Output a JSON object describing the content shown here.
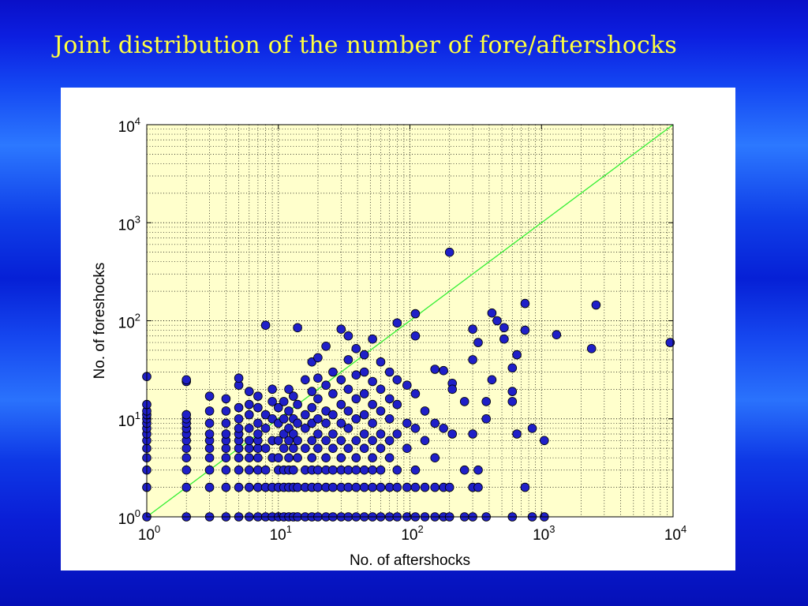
{
  "slide": {
    "title": "Joint distribution of the number of fore/aftershocks"
  },
  "colors": {
    "background": "#0a1ed6",
    "title": "#ffff40",
    "plot_area": "#ffffcc",
    "marker_fill": "#1f1fc8",
    "marker_edge": "#000000",
    "reference_line": "#33ee33",
    "grid": "#000000"
  },
  "chart_data": {
    "type": "scatter",
    "title": "",
    "xlabel": "No. of aftershocks",
    "ylabel": "No. of foreshocks",
    "xscale": "log",
    "yscale": "log",
    "xlim": [
      1,
      10000
    ],
    "ylim": [
      1,
      10000
    ],
    "x_tick_labels": [
      "10^0",
      "10^1",
      "10^2",
      "10^3",
      "10^4"
    ],
    "y_tick_labels": [
      "10^0",
      "10^1",
      "10^2",
      "10^3",
      "10^4"
    ],
    "grid": true,
    "grid_style": "dotted",
    "reference_line": {
      "type": "y=x",
      "color": "#33ee33"
    },
    "series": [
      {
        "points": [
          [
            1,
            1
          ],
          [
            1,
            2
          ],
          [
            1,
            3
          ],
          [
            1,
            4
          ],
          [
            1,
            5
          ],
          [
            1,
            6
          ],
          [
            1,
            7
          ],
          [
            1,
            8
          ],
          [
            1,
            9
          ],
          [
            1,
            10
          ],
          [
            1,
            11
          ],
          [
            1,
            12
          ],
          [
            1,
            14
          ],
          [
            1,
            27
          ],
          [
            2,
            1
          ],
          [
            2,
            2
          ],
          [
            2,
            3
          ],
          [
            2,
            4
          ],
          [
            2,
            5
          ],
          [
            2,
            6
          ],
          [
            2,
            7
          ],
          [
            2,
            8
          ],
          [
            2,
            9
          ],
          [
            2,
            10
          ],
          [
            2,
            11
          ],
          [
            2,
            24
          ],
          [
            2,
            25
          ],
          [
            3,
            1
          ],
          [
            3,
            2
          ],
          [
            3,
            3
          ],
          [
            3,
            4
          ],
          [
            3,
            5
          ],
          [
            3,
            6
          ],
          [
            3,
            7
          ],
          [
            3,
            9
          ],
          [
            3,
            12
          ],
          [
            3,
            17
          ],
          [
            4,
            1
          ],
          [
            4,
            2
          ],
          [
            4,
            3
          ],
          [
            4,
            4
          ],
          [
            4,
            5
          ],
          [
            4,
            6
          ],
          [
            4,
            7
          ],
          [
            4,
            9
          ],
          [
            4,
            12
          ],
          [
            4,
            16
          ],
          [
            5,
            1
          ],
          [
            5,
            2
          ],
          [
            5,
            3
          ],
          [
            5,
            4
          ],
          [
            5,
            5
          ],
          [
            5,
            6
          ],
          [
            5,
            7
          ],
          [
            5,
            8
          ],
          [
            5,
            10
          ],
          [
            5,
            13
          ],
          [
            5,
            22
          ],
          [
            5,
            26
          ],
          [
            6,
            1
          ],
          [
            6,
            2
          ],
          [
            6,
            3
          ],
          [
            6,
            4
          ],
          [
            6,
            5
          ],
          [
            6,
            6
          ],
          [
            6,
            8
          ],
          [
            6,
            11
          ],
          [
            6,
            14
          ],
          [
            6,
            19
          ],
          [
            7,
            1
          ],
          [
            7,
            2
          ],
          [
            7,
            3
          ],
          [
            7,
            4
          ],
          [
            7,
            5
          ],
          [
            7,
            6
          ],
          [
            7,
            7
          ],
          [
            7,
            9
          ],
          [
            7,
            13
          ],
          [
            7,
            17
          ],
          [
            8,
            1
          ],
          [
            8,
            2
          ],
          [
            8,
            3
          ],
          [
            8,
            5
          ],
          [
            8,
            8
          ],
          [
            8,
            11
          ],
          [
            8,
            90
          ],
          [
            9,
            1
          ],
          [
            9,
            2
          ],
          [
            9,
            4
          ],
          [
            9,
            6
          ],
          [
            9,
            10
          ],
          [
            9,
            15
          ],
          [
            9,
            20
          ],
          [
            10,
            1
          ],
          [
            10,
            2
          ],
          [
            10,
            3
          ],
          [
            10,
            4
          ],
          [
            10,
            6
          ],
          [
            10,
            9
          ],
          [
            10,
            13
          ],
          [
            11,
            1
          ],
          [
            11,
            2
          ],
          [
            11,
            3
          ],
          [
            11,
            5
          ],
          [
            11,
            7
          ],
          [
            11,
            10
          ],
          [
            11,
            15
          ],
          [
            12,
            1
          ],
          [
            12,
            2
          ],
          [
            12,
            3
          ],
          [
            12,
            4
          ],
          [
            12,
            6
          ],
          [
            12,
            8
          ],
          [
            12,
            12
          ],
          [
            12,
            20
          ],
          [
            13,
            1
          ],
          [
            13,
            2
          ],
          [
            13,
            3
          ],
          [
            13,
            5
          ],
          [
            13,
            7
          ],
          [
            13,
            10
          ],
          [
            13,
            17
          ],
          [
            14,
            1
          ],
          [
            14,
            2
          ],
          [
            14,
            4
          ],
          [
            14,
            6
          ],
          [
            14,
            9
          ],
          [
            14,
            14
          ],
          [
            14,
            85
          ],
          [
            16,
            1
          ],
          [
            16,
            2
          ],
          [
            16,
            3
          ],
          [
            16,
            5
          ],
          [
            16,
            8
          ],
          [
            16,
            11
          ],
          [
            16,
            25
          ],
          [
            18,
            1
          ],
          [
            18,
            2
          ],
          [
            18,
            3
          ],
          [
            18,
            4
          ],
          [
            18,
            6
          ],
          [
            18,
            9
          ],
          [
            18,
            13
          ],
          [
            18,
            19
          ],
          [
            18,
            38
          ],
          [
            20,
            1
          ],
          [
            20,
            2
          ],
          [
            20,
            3
          ],
          [
            20,
            5
          ],
          [
            20,
            7
          ],
          [
            20,
            10
          ],
          [
            20,
            16
          ],
          [
            20,
            26
          ],
          [
            20,
            42
          ],
          [
            23,
            1
          ],
          [
            23,
            2
          ],
          [
            23,
            3
          ],
          [
            23,
            4
          ],
          [
            23,
            6
          ],
          [
            23,
            9
          ],
          [
            23,
            12
          ],
          [
            23,
            22
          ],
          [
            23,
            55
          ],
          [
            26,
            1
          ],
          [
            26,
            2
          ],
          [
            26,
            3
          ],
          [
            26,
            5
          ],
          [
            26,
            7
          ],
          [
            26,
            11
          ],
          [
            26,
            18
          ],
          [
            26,
            30
          ],
          [
            30,
            1
          ],
          [
            30,
            2
          ],
          [
            30,
            3
          ],
          [
            30,
            4
          ],
          [
            30,
            6
          ],
          [
            30,
            9
          ],
          [
            30,
            14
          ],
          [
            30,
            25
          ],
          [
            30,
            82
          ],
          [
            34,
            1
          ],
          [
            34,
            2
          ],
          [
            34,
            3
          ],
          [
            34,
            5
          ],
          [
            34,
            8
          ],
          [
            34,
            12
          ],
          [
            34,
            20
          ],
          [
            34,
            40
          ],
          [
            34,
            70
          ],
          [
            39,
            1
          ],
          [
            39,
            2
          ],
          [
            39,
            3
          ],
          [
            39,
            4
          ],
          [
            39,
            6
          ],
          [
            39,
            10
          ],
          [
            39,
            16
          ],
          [
            39,
            28
          ],
          [
            39,
            52
          ],
          [
            45,
            1
          ],
          [
            45,
            2
          ],
          [
            45,
            3
          ],
          [
            45,
            5
          ],
          [
            45,
            7
          ],
          [
            45,
            11
          ],
          [
            45,
            18
          ],
          [
            45,
            30
          ],
          [
            45,
            45
          ],
          [
            52,
            1
          ],
          [
            52,
            2
          ],
          [
            52,
            3
          ],
          [
            52,
            4
          ],
          [
            52,
            6
          ],
          [
            52,
            9
          ],
          [
            52,
            14
          ],
          [
            52,
            24
          ],
          [
            52,
            65
          ],
          [
            60,
            1
          ],
          [
            60,
            2
          ],
          [
            60,
            3
          ],
          [
            60,
            5
          ],
          [
            60,
            7
          ],
          [
            60,
            12
          ],
          [
            60,
            20
          ],
          [
            60,
            38
          ],
          [
            70,
            1
          ],
          [
            70,
            2
          ],
          [
            70,
            4
          ],
          [
            70,
            6
          ],
          [
            70,
            10
          ],
          [
            70,
            16
          ],
          [
            70,
            30
          ],
          [
            80,
            1
          ],
          [
            80,
            2
          ],
          [
            80,
            3
          ],
          [
            80,
            7
          ],
          [
            80,
            14
          ],
          [
            80,
            25
          ],
          [
            80,
            95
          ],
          [
            95,
            1
          ],
          [
            95,
            2
          ],
          [
            95,
            5
          ],
          [
            95,
            9
          ],
          [
            95,
            22
          ],
          [
            110,
            1
          ],
          [
            110,
            2
          ],
          [
            110,
            3
          ],
          [
            110,
            8
          ],
          [
            110,
            18
          ],
          [
            110,
            70
          ],
          [
            110,
            118
          ],
          [
            130,
            1
          ],
          [
            130,
            2
          ],
          [
            130,
            6
          ],
          [
            130,
            12
          ],
          [
            155,
            1
          ],
          [
            155,
            2
          ],
          [
            155,
            4
          ],
          [
            155,
            9
          ],
          [
            155,
            32
          ],
          [
            180,
            1
          ],
          [
            180,
            2
          ],
          [
            180,
            8
          ],
          [
            180,
            31
          ],
          [
            200,
            1
          ],
          [
            200,
            2
          ],
          [
            200,
            500
          ],
          [
            210,
            7
          ],
          [
            210,
            23
          ],
          [
            210,
            20
          ],
          [
            260,
            1
          ],
          [
            260,
            3
          ],
          [
            260,
            15
          ],
          [
            300,
            1
          ],
          [
            300,
            2
          ],
          [
            300,
            7
          ],
          [
            300,
            40
          ],
          [
            300,
            82
          ],
          [
            330,
            2
          ],
          [
            330,
            3
          ],
          [
            330,
            60
          ],
          [
            380,
            1
          ],
          [
            380,
            10
          ],
          [
            380,
            15
          ],
          [
            420,
            25
          ],
          [
            420,
            120
          ],
          [
            460,
            100
          ],
          [
            520,
            65
          ],
          [
            520,
            85
          ],
          [
            600,
            1
          ],
          [
            600,
            15
          ],
          [
            600,
            19
          ],
          [
            600,
            33
          ],
          [
            650,
            7
          ],
          [
            650,
            45
          ],
          [
            750,
            2
          ],
          [
            750,
            80
          ],
          [
            750,
            150
          ],
          [
            850,
            1
          ],
          [
            850,
            8
          ],
          [
            1050,
            6
          ],
          [
            1050,
            1
          ],
          [
            1300,
            72
          ],
          [
            2400,
            52
          ],
          [
            2600,
            145
          ],
          [
            9500,
            60
          ]
        ]
      }
    ]
  }
}
